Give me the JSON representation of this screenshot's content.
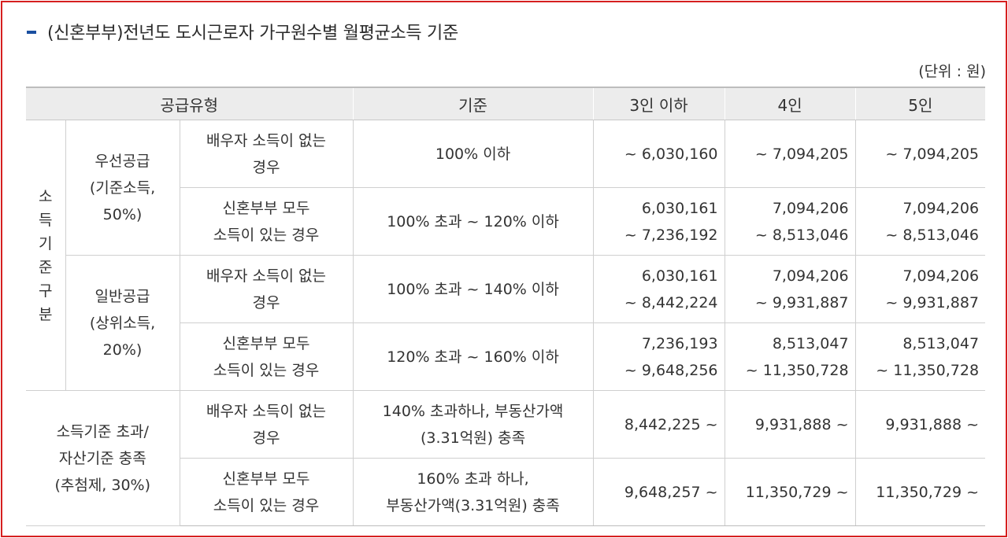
{
  "title": "(신혼부부)전년도 도시근로자 가구원수별 월평균소득 기준",
  "unit": "(단위 : 원)",
  "headers": {
    "type": "공급유형",
    "criteria": "기준",
    "col3": "3인 이하",
    "col4": "4인",
    "col5": "5인"
  },
  "vertical_label": [
    "소",
    "득",
    "기",
    "준",
    "구",
    "분"
  ],
  "groups": {
    "priority": [
      "우선공급",
      "(기준소득,",
      "50%)"
    ],
    "general": [
      "일반공급",
      "(상위소득,",
      "20%)"
    ],
    "lottery": [
      "소득기준 초과/",
      "자산기준 충족",
      "(추첨제, 30%)"
    ]
  },
  "rows": [
    {
      "case": [
        "배우자 소득이 없는",
        "경우"
      ],
      "criteria": [
        "100% 이하"
      ],
      "v3": [
        "~ 6,030,160"
      ],
      "v4": [
        "~ 7,094,205"
      ],
      "v5": [
        "~ 7,094,205"
      ]
    },
    {
      "case": [
        "신혼부부 모두",
        "소득이 있는 경우"
      ],
      "criteria": [
        "100% 초과 ~ 120% 이하"
      ],
      "v3": [
        "6,030,161",
        "~ 7,236,192"
      ],
      "v4": [
        "7,094,206",
        "~ 8,513,046"
      ],
      "v5": [
        "7,094,206",
        "~ 8,513,046"
      ]
    },
    {
      "case": [
        "배우자 소득이 없는",
        "경우"
      ],
      "criteria": [
        "100% 초과 ~ 140% 이하"
      ],
      "v3": [
        "6,030,161",
        "~ 8,442,224"
      ],
      "v4": [
        "7,094,206",
        "~ 9,931,887"
      ],
      "v5": [
        "7,094,206",
        "~ 9,931,887"
      ]
    },
    {
      "case": [
        "신혼부부 모두",
        "소득이 있는 경우"
      ],
      "criteria": [
        "120% 초과 ~ 160% 이하"
      ],
      "v3": [
        "7,236,193",
        "~ 9,648,256"
      ],
      "v4": [
        "8,513,047",
        "~ 11,350,728"
      ],
      "v5": [
        "8,513,047",
        "~ 11,350,728"
      ]
    },
    {
      "case": [
        "배우자 소득이 없는",
        "경우"
      ],
      "criteria": [
        "140% 초과하나, 부동산가액",
        "(3.31억원) 충족"
      ],
      "v3": [
        "8,442,225 ~"
      ],
      "v4": [
        "9,931,888 ~"
      ],
      "v5": [
        "9,931,888 ~"
      ]
    },
    {
      "case": [
        "신혼부부 모두",
        "소득이 있는 경우"
      ],
      "criteria": [
        "160% 초과 하나,",
        "부동산가액(3.31억원) 충족"
      ],
      "v3": [
        "9,648,257 ~"
      ],
      "v4": [
        "11,350,729 ~"
      ],
      "v5": [
        "11,350,729 ~"
      ]
    }
  ]
}
